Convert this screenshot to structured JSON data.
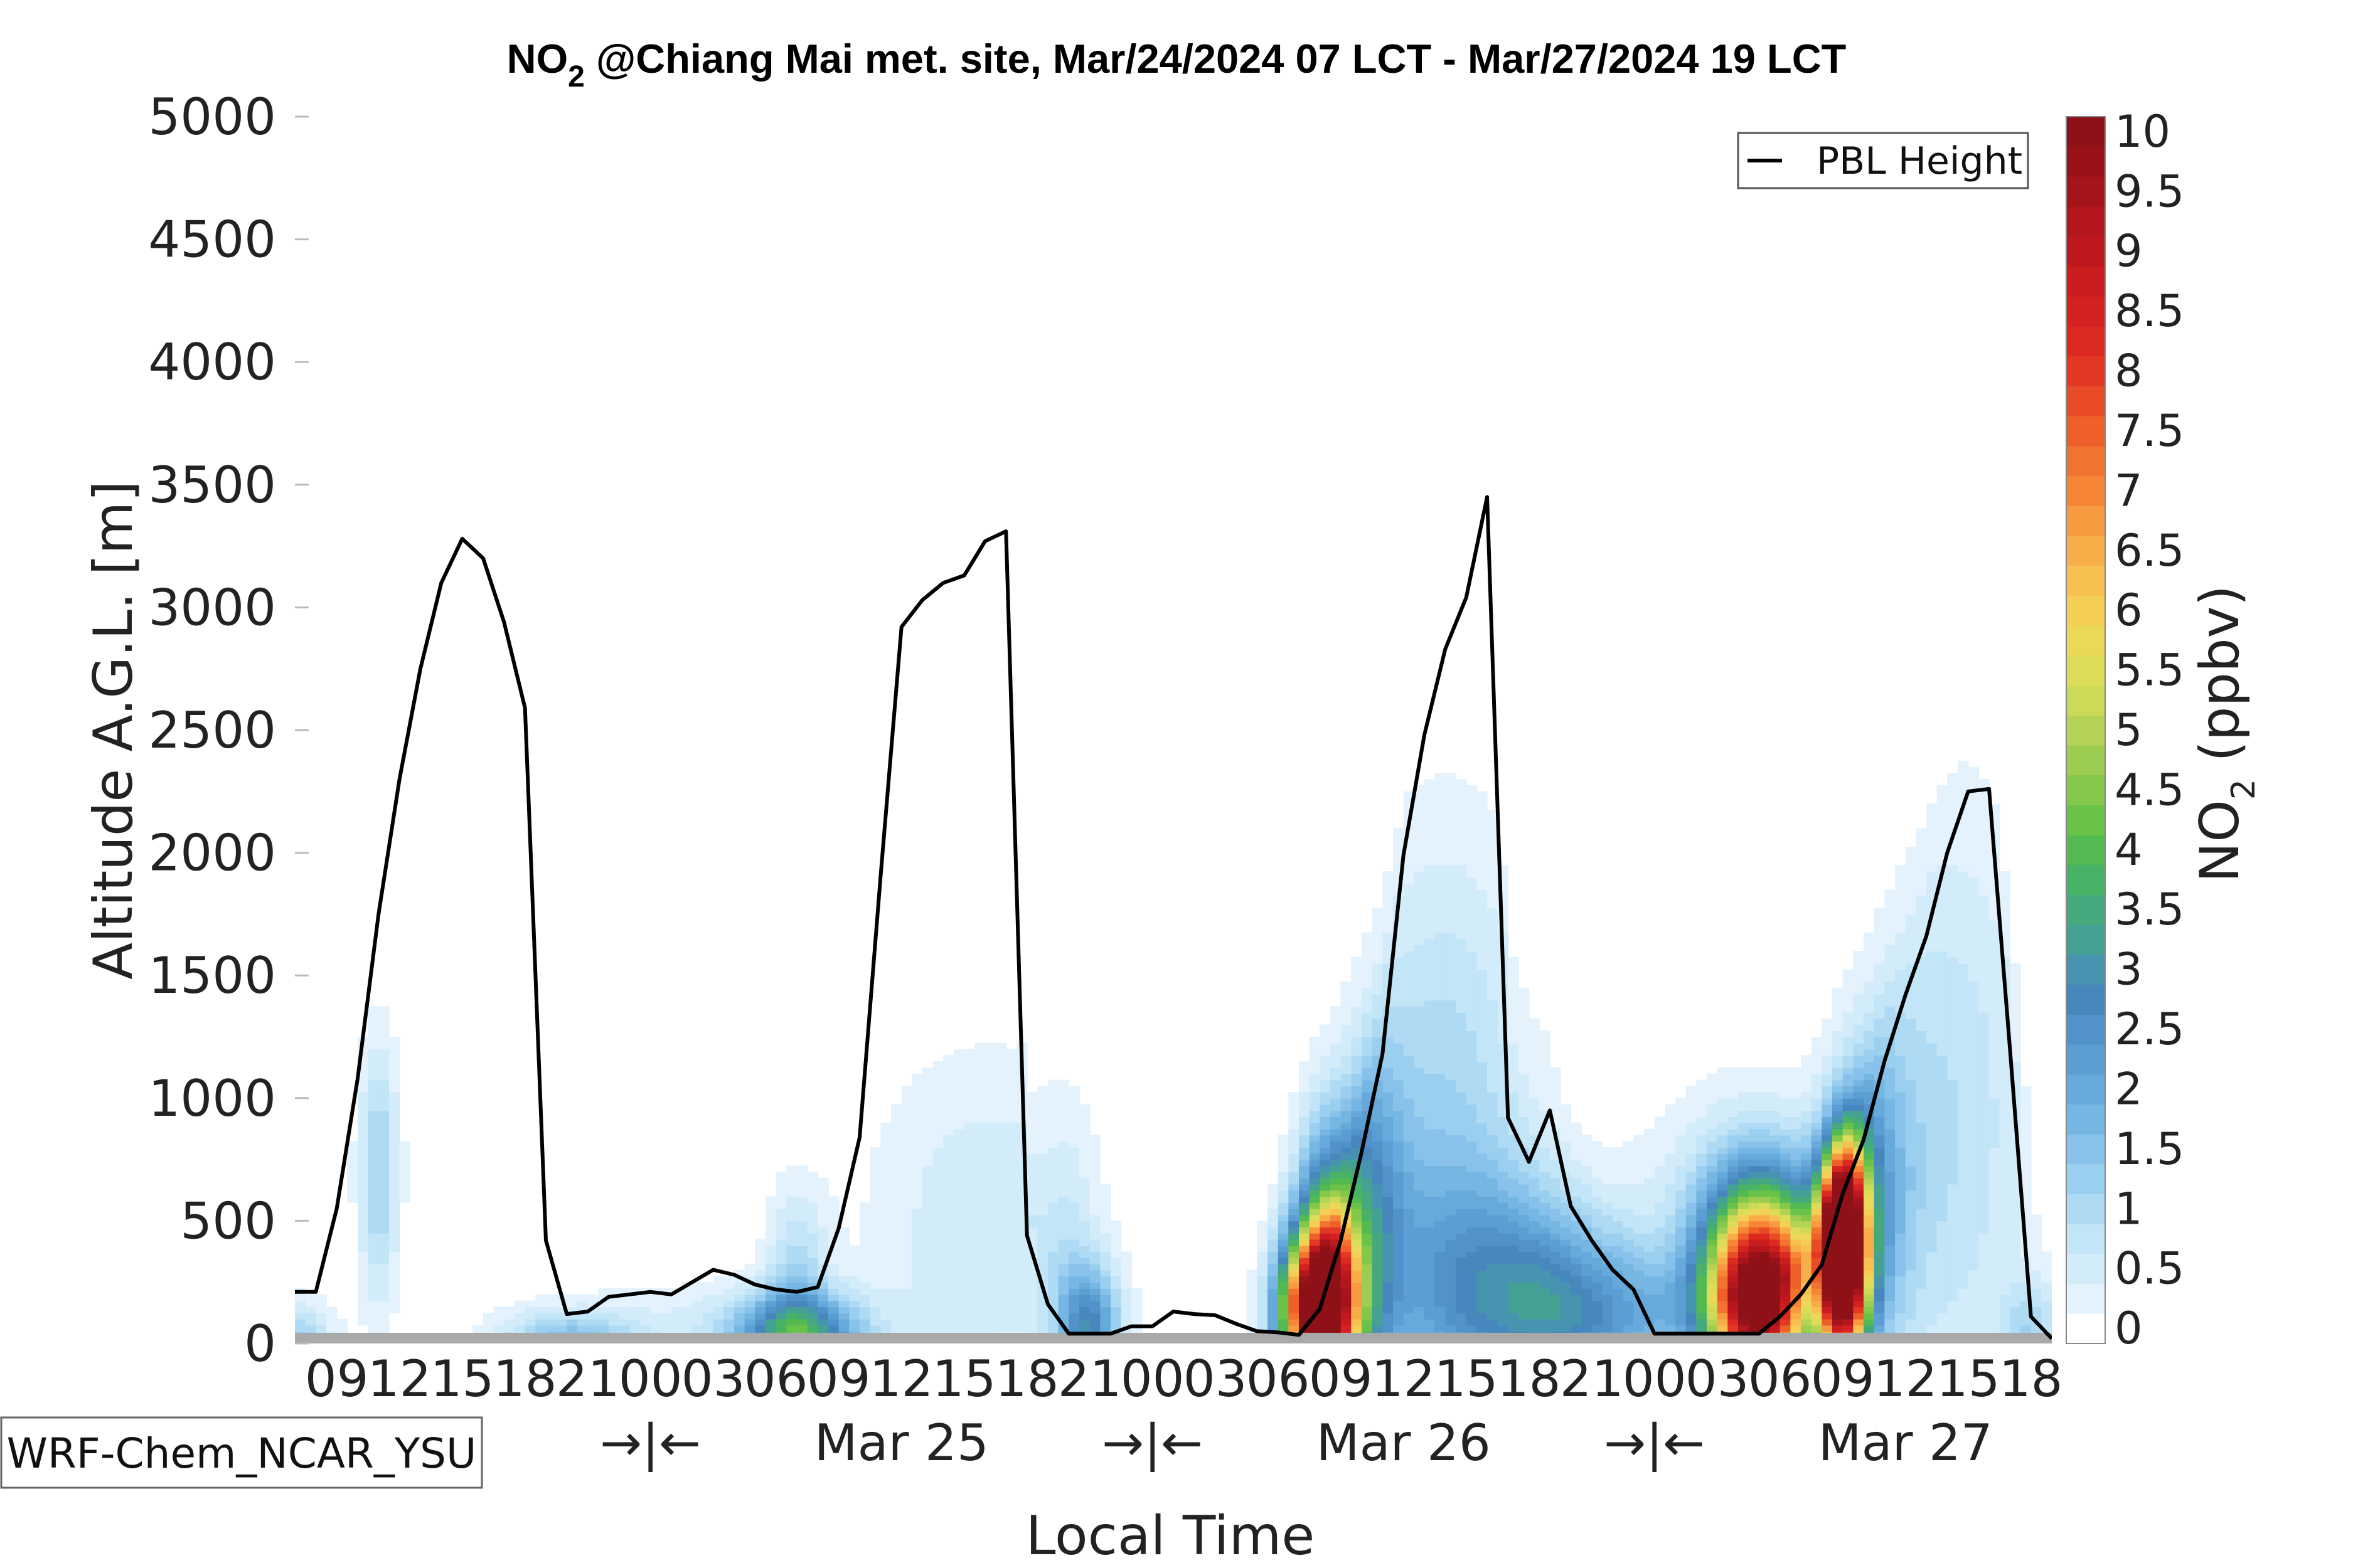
{
  "chart_data": {
    "type": "contour",
    "title": {
      "species_main": "NO",
      "species_sub": "2",
      "rest": " @Chiang Mai met. site, Mar/24/2024 07 LCT - Mar/27/2024 19 LCT"
    },
    "xlabel": "Local Time",
    "ylabel": "Altitude A.G.L. [m]",
    "ylim": [
      0,
      5000
    ],
    "yticks": [
      0,
      500,
      1000,
      1500,
      2000,
      2500,
      3000,
      3500,
      4000,
      4500,
      5000
    ],
    "xlim_hours": [
      7,
      91
    ],
    "hour_ticks": [
      {
        "h": 9,
        "label": "09"
      },
      {
        "h": 12,
        "label": "12"
      },
      {
        "h": 15,
        "label": "15"
      },
      {
        "h": 18,
        "label": "18"
      },
      {
        "h": 21,
        "label": "21"
      },
      {
        "h": 24,
        "label": "00"
      },
      {
        "h": 27,
        "label": "03"
      },
      {
        "h": 30,
        "label": "06"
      },
      {
        "h": 33,
        "label": "09"
      },
      {
        "h": 36,
        "label": "12"
      },
      {
        "h": 39,
        "label": "15"
      },
      {
        "h": 42,
        "label": "18"
      },
      {
        "h": 45,
        "label": "21"
      },
      {
        "h": 48,
        "label": "00"
      },
      {
        "h": 51,
        "label": "03"
      },
      {
        "h": 54,
        "label": "06"
      },
      {
        "h": 57,
        "label": "09"
      },
      {
        "h": 60,
        "label": "12"
      },
      {
        "h": 63,
        "label": "15"
      },
      {
        "h": 66,
        "label": "18"
      },
      {
        "h": 69,
        "label": "21"
      },
      {
        "h": 72,
        "label": "00"
      },
      {
        "h": 75,
        "label": "03"
      },
      {
        "h": 78,
        "label": "06"
      },
      {
        "h": 81,
        "label": "09"
      },
      {
        "h": 84,
        "label": "12"
      },
      {
        "h": 87,
        "label": "15"
      },
      {
        "h": 90,
        "label": "18"
      }
    ],
    "day_labels": [
      {
        "h": 24,
        "label": "→|←"
      },
      {
        "h": 36,
        "label": "Mar 25"
      },
      {
        "h": 48,
        "label": "→|←"
      },
      {
        "h": 60,
        "label": "Mar 26"
      },
      {
        "h": 72,
        "label": "→|←"
      },
      {
        "h": 84,
        "label": "Mar 27"
      }
    ],
    "model_label": "WRF-Chem_NCAR_YSU",
    "legend": {
      "entry": "PBL Height",
      "placement": "top-right"
    },
    "colorbar": {
      "label_main": "NO",
      "label_sub": "2",
      "label_rest": " (ppbv)",
      "ticks": [
        "0",
        "0.5",
        "1",
        "1.5",
        "2",
        "2.5",
        "3",
        "3.5",
        "4",
        "4.5",
        "5",
        "5.5",
        "6",
        "6.5",
        "7",
        "7.5",
        "8",
        "8.5",
        "9",
        "9.5",
        "10"
      ],
      "levels": [
        0,
        0.25,
        0.5,
        0.75,
        1,
        1.25,
        1.5,
        1.75,
        2,
        2.25,
        2.5,
        2.75,
        3,
        3.25,
        3.5,
        3.75,
        4,
        4.25,
        4.5,
        4.75,
        5,
        5.25,
        5.5,
        5.75,
        6,
        6.25,
        6.5,
        6.75,
        7,
        7.25,
        7.5,
        7.75,
        8,
        8.25,
        8.5,
        8.75,
        9,
        9.25,
        9.5,
        9.75,
        10,
        10.25
      ],
      "colors": [
        "#ffffff",
        "#e3f2fc",
        "#d3ecfa",
        "#c3e5f8",
        "#afdaf4",
        "#9bcff0",
        "#88c2ea",
        "#76b6e3",
        "#66aadb",
        "#5a9ed3",
        "#5092c9",
        "#4887be",
        "#4794b0",
        "#46a195",
        "#45a97d",
        "#48b266",
        "#53ba52",
        "#6ac248",
        "#83c84a",
        "#9ccd50",
        "#b5d355",
        "#ccda57",
        "#dddc58",
        "#ebd858",
        "#f5cf55",
        "#f7c050",
        "#f8ae48",
        "#f89a3f",
        "#f68636",
        "#f2732f",
        "#ee5f2a",
        "#e94b27",
        "#e33824",
        "#dc2a22",
        "#d42121",
        "#cb1c20",
        "#c0181f",
        "#b3161d",
        "#a6141b",
        "#9a1219",
        "#8d1117"
      ]
    },
    "pbl_height": {
      "x": [
        7,
        8,
        9,
        10,
        11,
        12,
        13,
        14,
        15,
        16,
        17,
        18,
        19,
        20,
        21,
        22,
        23,
        24,
        25,
        26,
        27,
        28,
        29,
        30,
        31,
        32,
        33,
        34,
        35,
        36,
        37,
        38,
        39,
        40,
        41,
        42,
        43,
        44,
        45,
        46,
        47,
        48,
        49,
        50,
        51,
        52,
        53,
        54,
        55,
        56,
        57,
        58,
        59,
        60,
        61,
        62,
        63,
        64,
        65,
        66,
        67,
        68,
        69,
        70,
        71,
        72,
        73,
        74,
        75,
        76,
        77,
        78,
        79,
        80,
        81,
        82,
        83,
        84,
        85,
        86,
        87,
        88,
        89,
        90,
        91
      ],
      "y": [
        210,
        210,
        550,
        1080,
        1750,
        2300,
        2750,
        3100,
        3280,
        3200,
        2940,
        2590,
        420,
        120,
        130,
        190,
        200,
        210,
        200,
        250,
        300,
        280,
        240,
        220,
        210,
        230,
        470,
        840,
        1900,
        2920,
        3030,
        3100,
        3130,
        3270,
        3310,
        440,
        160,
        40,
        40,
        40,
        70,
        70,
        130,
        120,
        115,
        80,
        50,
        45,
        35,
        140,
        420,
        780,
        1180,
        1990,
        2480,
        2830,
        3040,
        3450,
        920,
        740,
        950,
        560,
        420,
        300,
        220,
        40,
        40,
        40,
        40,
        40,
        40,
        110,
        200,
        320,
        610,
        830,
        1150,
        1420,
        1660,
        2000,
        2250,
        2260,
        1200,
        110,
        20
      ]
    },
    "no2_plumes": [
      {
        "t": 7,
        "z": 20,
        "st": 1.3,
        "sz": 110,
        "a": 1.3
      },
      {
        "t": 11,
        "z": 700,
        "st": 0.7,
        "sz": 380,
        "a": 1.3
      },
      {
        "t": 20,
        "z": 20,
        "st": 2.2,
        "sz": 80,
        "a": 1.4
      },
      {
        "t": 27,
        "z": 20,
        "st": 6.0,
        "sz": 160,
        "a": 0.6
      },
      {
        "t": 31,
        "z": 30,
        "st": 2.0,
        "sz": 120,
        "a": 3.4
      },
      {
        "t": 31,
        "z": 350,
        "st": 1.0,
        "sz": 260,
        "a": 1.0
      },
      {
        "t": 40,
        "z": 500,
        "st": 4.0,
        "sz": 500,
        "a": 0.7
      },
      {
        "t": 44,
        "z": 600,
        "st": 1.0,
        "sz": 500,
        "a": 0.7
      },
      {
        "t": 45,
        "z": 40,
        "st": 1.0,
        "sz": 200,
        "a": 2.6
      },
      {
        "t": 56,
        "z": 150,
        "st": 1.2,
        "sz": 240,
        "a": 12.0
      },
      {
        "t": 56,
        "z": 600,
        "st": 0.9,
        "sz": 320,
        "a": 3.0
      },
      {
        "t": 58,
        "z": 500,
        "st": 1.4,
        "sz": 500,
        "a": 2.4
      },
      {
        "t": 62,
        "z": 900,
        "st": 3.0,
        "sz": 800,
        "a": 1.2
      },
      {
        "t": 63,
        "z": 200,
        "st": 3.0,
        "sz": 350,
        "a": 1.6
      },
      {
        "t": 67,
        "z": 200,
        "st": 2.5,
        "sz": 300,
        "a": 1.6
      },
      {
        "t": 70,
        "z": 100,
        "st": 3.0,
        "sz": 200,
        "a": 1.5
      },
      {
        "t": 77,
        "z": 250,
        "st": 1.6,
        "sz": 300,
        "a": 11.0
      },
      {
        "t": 76,
        "z": 500,
        "st": 3.0,
        "sz": 400,
        "a": 2.0
      },
      {
        "t": 81,
        "z": 380,
        "st": 0.8,
        "sz": 280,
        "a": 14.0
      },
      {
        "t": 82,
        "z": 600,
        "st": 1.5,
        "sz": 500,
        "a": 2.0
      },
      {
        "t": 86,
        "z": 900,
        "st": 3.0,
        "sz": 900,
        "a": 1.0
      },
      {
        "t": 90,
        "z": 50,
        "st": 1.0,
        "sz": 150,
        "a": 1.0
      }
    ]
  }
}
